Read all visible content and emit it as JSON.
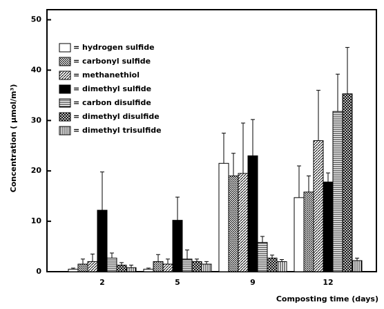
{
  "chart_data": {
    "type": "bar",
    "y_label": "Concentration ( µmol/m³)",
    "x_label": "Composting time  (days)",
    "categories": [
      "2",
      "5",
      "9",
      "12"
    ],
    "ylim": [
      0,
      52
    ],
    "yticks": [
      0,
      10,
      20,
      30,
      40,
      50
    ],
    "series": [
      {
        "name": "= hydrogen sulfide",
        "pattern": "none",
        "values": [
          0.5,
          0.5,
          21.5,
          14.7
        ],
        "errors": [
          0.2,
          0.2,
          6,
          6.3
        ]
      },
      {
        "name": "= carbonyl sulfide",
        "pattern": "back-diagonal",
        "values": [
          1.5,
          2,
          19,
          15.8
        ],
        "errors": [
          1,
          1.4,
          4.5,
          3.2
        ]
      },
      {
        "name": "= methanethiol",
        "pattern": "diagonal",
        "values": [
          2,
          1.5,
          19.5,
          26
        ],
        "errors": [
          1.5,
          1,
          10,
          10
        ]
      },
      {
        "name": "= dimethyl sulfide",
        "pattern": "solid",
        "values": [
          12.2,
          10.2,
          23,
          17.8
        ],
        "errors": [
          7.6,
          4.6,
          7.2,
          1.8
        ]
      },
      {
        "name": "= carbon disulfide",
        "pattern": "horizontal",
        "values": [
          2.7,
          2.5,
          5.8,
          31.8
        ],
        "errors": [
          1,
          1.8,
          1.2,
          7.4
        ]
      },
      {
        "name": "= dimethyl disulfide",
        "pattern": "crosshatch",
        "values": [
          1.3,
          2,
          2.7,
          35.3
        ],
        "errors": [
          0.5,
          0.5,
          0.6,
          9.2
        ]
      },
      {
        "name": "= dimethyl trisulfide",
        "pattern": "vertical",
        "values": [
          0.8,
          1.5,
          2,
          2.2
        ],
        "errors": [
          0.5,
          0.5,
          0.4,
          0.5
        ]
      }
    ]
  }
}
